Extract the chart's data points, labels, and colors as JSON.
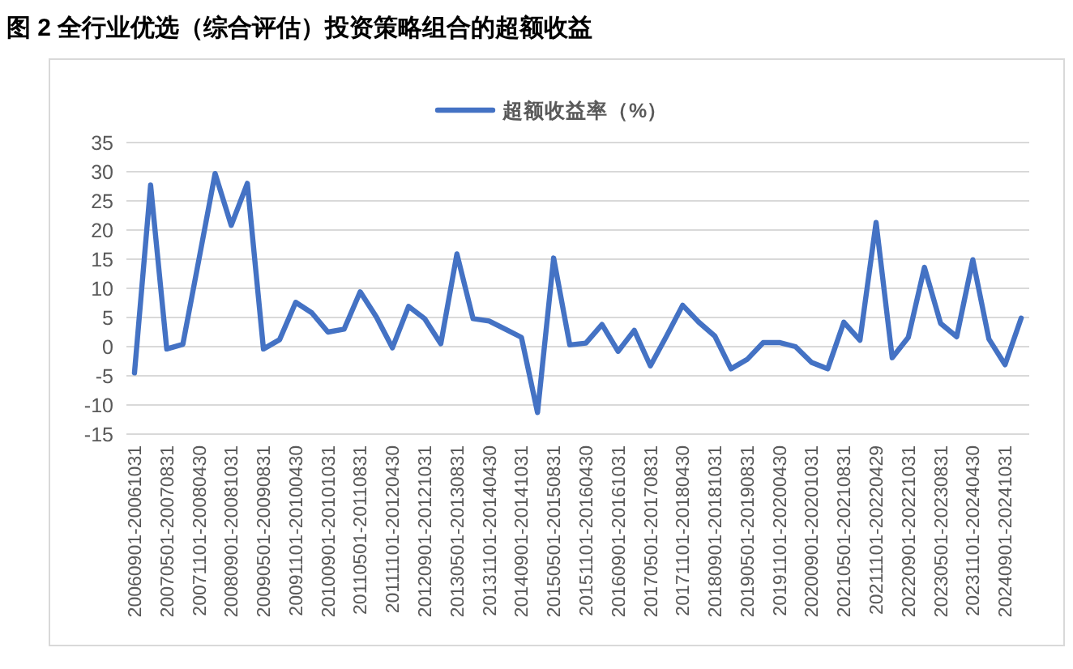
{
  "chart_data": {
    "type": "line",
    "title": "图 2 全行业优选（综合评估）投资策略组合的超额收益",
    "categories": [
      "20060901-20061031",
      null,
      "20070501-20070831",
      null,
      "20071101-20080430",
      null,
      "20080901-20081031",
      null,
      "20090501-20090831",
      null,
      "20091101-20100430",
      null,
      "20100901-20101031",
      null,
      "20110501-20110831",
      null,
      "20111101-20120430",
      null,
      "20120901-20121031",
      null,
      "20130501-20130831",
      null,
      "20131101-20140430",
      null,
      "20140901-20141031",
      null,
      "20150501-20150831",
      null,
      "20151101-20160430",
      null,
      "20160901-20161031",
      null,
      "20170501-20170831",
      null,
      "20171101-20180430",
      null,
      "20180901-20181031",
      null,
      "20190501-20190831",
      null,
      "20191101-20200430",
      null,
      "20200901-20201031",
      null,
      "20210501-20210831",
      null,
      "20211101-20220429",
      null,
      "20220901-20221031",
      null,
      "20230501-20230831",
      null,
      "20231101-20240430",
      null,
      "20240901-20241031",
      null
    ],
    "series": [
      {
        "name": "超额收益率（%）",
        "color": "#4472c4",
        "values": [
          -4.5,
          27.7,
          -0.4,
          0.4,
          15,
          29.7,
          20.8,
          28.0,
          -0.4,
          1.2,
          7.6,
          5.8,
          2.5,
          3.0,
          9.4,
          5.1,
          -0.2,
          6.9,
          4.8,
          0.5,
          15.9,
          4.8,
          4.4,
          3.0,
          1.6,
          -11.3,
          15.2,
          0.3,
          0.6,
          3.8,
          -0.8,
          2.8,
          -3.3,
          1.8,
          7.1,
          4.2,
          1.8,
          -3.8,
          -2.2,
          0.7,
          0.7,
          0.0,
          -2.7,
          -3.8,
          4.2,
          1.1,
          21.3,
          -1.9,
          1.6,
          13.6,
          4.0,
          1.7,
          14.9,
          1.3,
          -3.1,
          4.9
        ]
      }
    ],
    "ylim": [
      -15,
      35
    ],
    "yticks": [
      -15,
      -10,
      -5,
      0,
      5,
      10,
      15,
      20,
      25,
      30,
      35
    ],
    "grid": "y",
    "legend": "top"
  }
}
